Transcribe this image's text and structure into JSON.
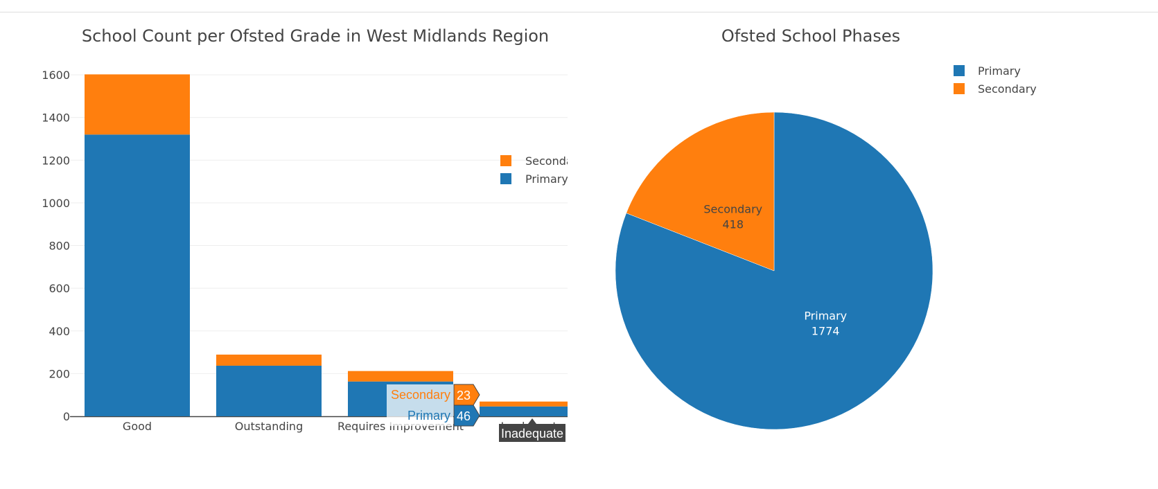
{
  "chart_data": [
    {
      "type": "bar",
      "stacked": true,
      "title": "School Count per Ofsted Grade in West Midlands Region",
      "categories": [
        "Good",
        "Outstanding",
        "Requires Improvement",
        "Inadequate"
      ],
      "series": [
        {
          "name": "Primary",
          "color": "#1f77b4",
          "values": [
            1320,
            237,
            163,
            46
          ]
        },
        {
          "name": "Secondary",
          "color": "#ff7f0e",
          "values": [
            282,
            52,
            49,
            23
          ]
        }
      ],
      "ylim": [
        0,
        1600
      ],
      "yticks": [
        0,
        200,
        400,
        600,
        800,
        1000,
        1200,
        1400,
        1600
      ],
      "ytick_labels": [
        "0",
        "200",
        "400",
        "600",
        "800",
        "1000",
        "1200",
        "1400",
        "1600"
      ],
      "grid": true,
      "legend": {
        "placement": "right",
        "entries": [
          {
            "label": "Secondary",
            "color": "#ff7f0e"
          },
          {
            "label": "Primary",
            "color": "#1f77b4"
          }
        ]
      },
      "hover": {
        "category": "Inadequate",
        "labels": [
          {
            "series": "Secondary",
            "value": "23"
          },
          {
            "series": "Primary",
            "value": "46"
          }
        ]
      }
    },
    {
      "type": "pie",
      "title": "Ofsted School Phases",
      "slices": [
        {
          "label": "Primary",
          "value": 1774,
          "color": "#1f77b4"
        },
        {
          "label": "Secondary",
          "value": 418,
          "color": "#ff7f0e"
        }
      ],
      "legend": {
        "placement": "top-right",
        "entries": [
          {
            "label": "Primary",
            "color": "#1f77b4"
          },
          {
            "label": "Secondary",
            "color": "#ff7f0e"
          }
        ]
      }
    }
  ]
}
